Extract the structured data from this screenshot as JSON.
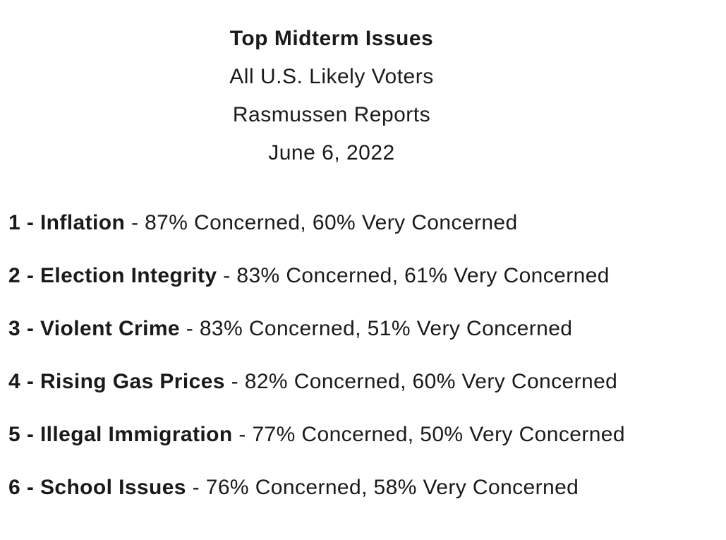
{
  "page": {
    "background_color": "#ffffff",
    "text_color": "#1a1a1a"
  },
  "header": {
    "title": "Top Midterm Issues",
    "audience": "All U.S. Likely Voters",
    "source": "Rasmussen Reports",
    "date": "June 6, 2022"
  },
  "issues": [
    {
      "rank": 1,
      "name": "Inflation",
      "concerned_pct": 87,
      "very_concerned_pct": 60,
      "label": "1 - Inflation",
      "stats": " - 87% Concerned, 60% Very Concerned"
    },
    {
      "rank": 2,
      "name": "Election Integrity",
      "concerned_pct": 83,
      "very_concerned_pct": 61,
      "label": "2 - Election Integrity",
      "stats": " - 83% Concerned, 61% Very Concerned"
    },
    {
      "rank": 3,
      "name": "Violent Crime",
      "concerned_pct": 83,
      "very_concerned_pct": 51,
      "label": "3 - Violent Crime",
      "stats": " - 83% Concerned, 51% Very Concerned"
    },
    {
      "rank": 4,
      "name": "Rising Gas Prices",
      "concerned_pct": 82,
      "very_concerned_pct": 60,
      "label": "4 - Rising Gas Prices",
      "stats": " - 82% Concerned, 60% Very Concerned"
    },
    {
      "rank": 5,
      "name": "Illegal Immigration",
      "concerned_pct": 77,
      "very_concerned_pct": 50,
      "label": "5 - Illegal Immigration",
      "stats": " - 77% Concerned, 50% Very Concerned"
    },
    {
      "rank": 6,
      "name": "School Issues",
      "concerned_pct": 76,
      "very_concerned_pct": 58,
      "label": "6 - School Issues",
      "stats": " - 76% Concerned, 58% Very Concerned"
    }
  ]
}
